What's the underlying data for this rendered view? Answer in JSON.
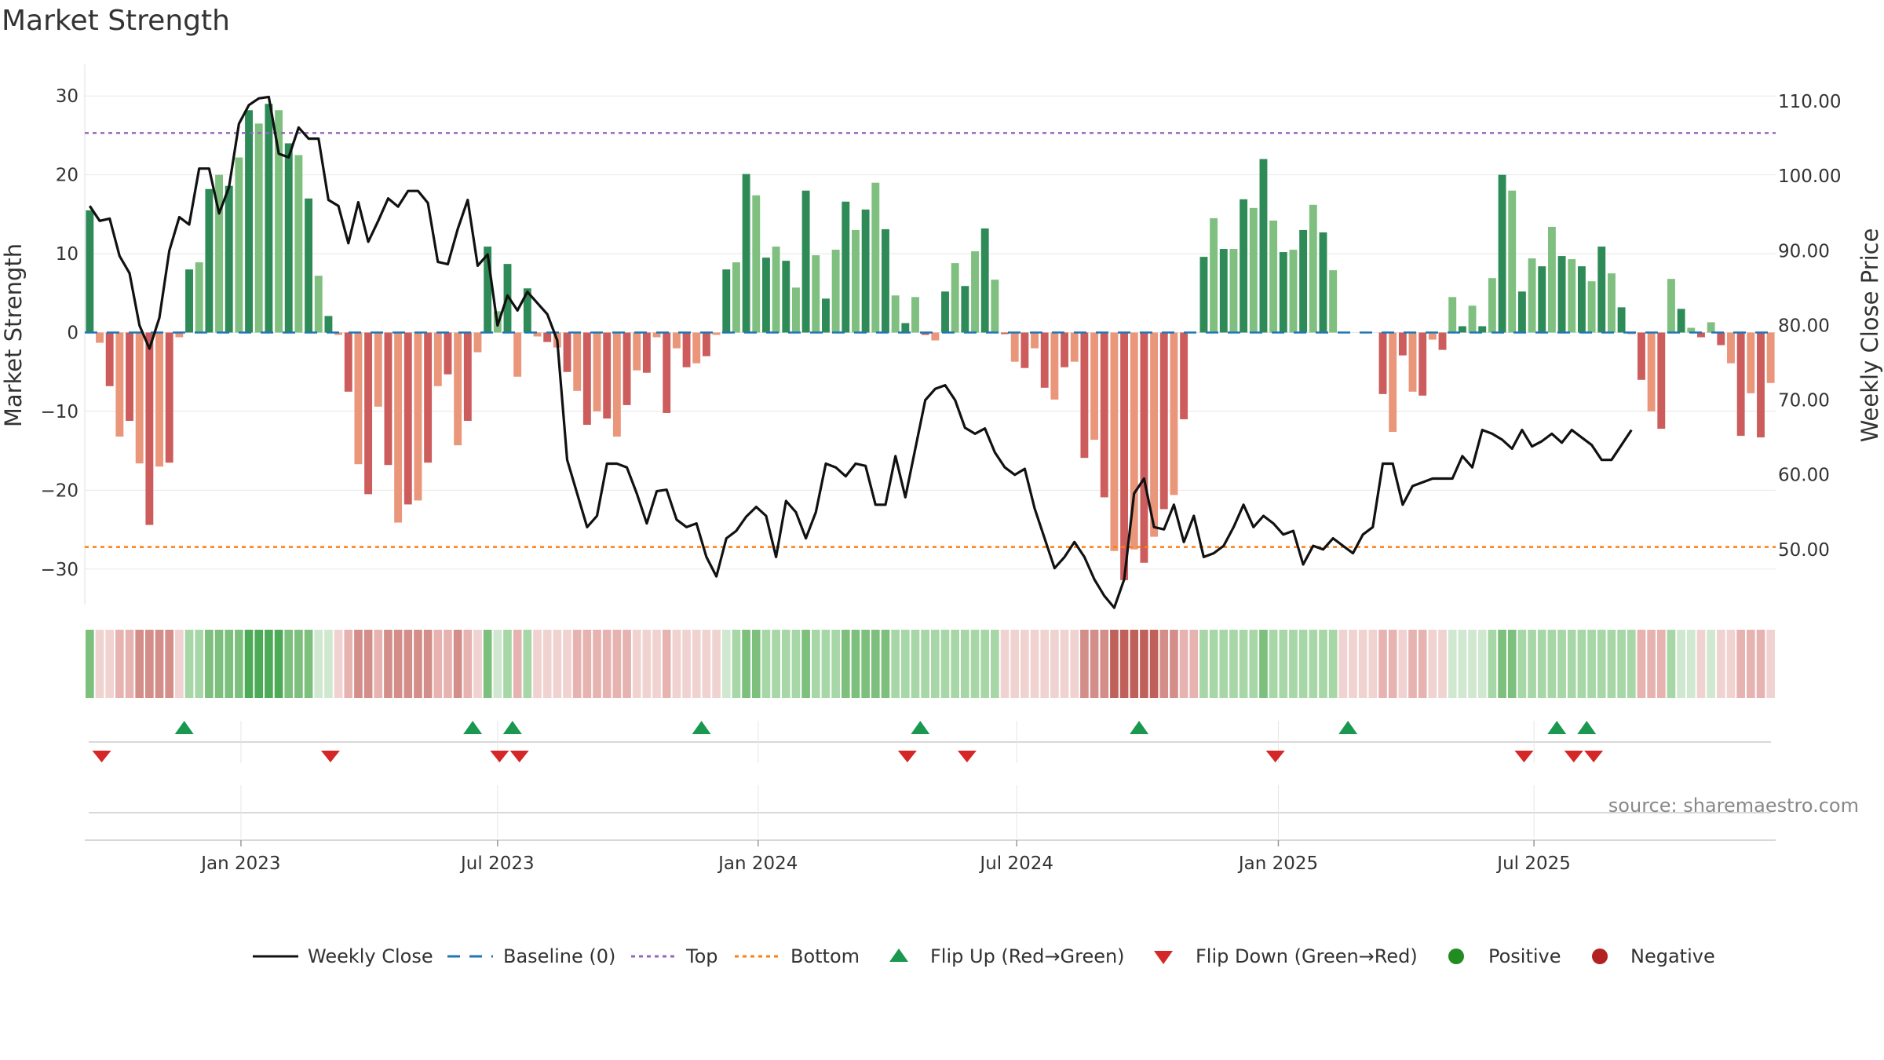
{
  "chart_data": {
    "type": "bar",
    "title": "Market Strength",
    "source": "source: sharemaestro.com",
    "left_axis": {
      "label": "Market Strength",
      "range": [
        -35,
        35
      ],
      "ticks": [
        "30",
        "20",
        "10",
        "0",
        "−10",
        "−20",
        "−30"
      ],
      "tick_values": [
        30,
        20,
        10,
        0,
        -10,
        -20,
        -30
      ]
    },
    "right_axis": {
      "label": "Weekly Close Price",
      "range": [
        42.1,
        116.0
      ],
      "ticks": [
        "110.00",
        "100.00",
        "90.00",
        "80.00",
        "70.00",
        "60.00",
        "50.00"
      ],
      "tick_values": [
        110,
        100,
        90,
        80,
        70,
        60,
        50
      ]
    },
    "x_axis": {
      "ticks": [
        "Jan 2023",
        "Jul 2023",
        "Jan 2024",
        "Jul 2024",
        "Jan 2025",
        "Jul 2025"
      ],
      "tick_week_index": [
        15.2,
        41.0,
        67.2,
        93.2,
        119.5,
        145.2
      ]
    },
    "reference_lines": {
      "baseline": 0,
      "top": 25.3,
      "bottom": -27.2
    },
    "series_strength": [
      15.5,
      -1.3,
      -6.8,
      -13.2,
      -11.2,
      -16.6,
      -24.4,
      -17.0,
      -16.5,
      -0.6,
      8.0,
      8.9,
      18.2,
      20.0,
      18.6,
      22.2,
      28.2,
      26.5,
      29.0,
      28.2,
      24.0,
      22.5,
      17.0,
      7.2,
      2.1,
      -0.3,
      -7.5,
      -16.7,
      -20.5,
      -9.4,
      -16.8,
      -24.1,
      -21.8,
      -21.3,
      -16.5,
      -6.8,
      -5.3,
      -14.3,
      -11.2,
      -2.5,
      10.9,
      2.7,
      8.7,
      -5.6,
      5.6,
      -0.5,
      -1.2,
      -1.9,
      -5.0,
      -7.4,
      -11.7,
      -10.0,
      -10.9,
      -13.2,
      -9.2,
      -4.8,
      -5.1,
      -0.6,
      -10.2,
      -2.0,
      -4.4,
      -3.9,
      -3.0,
      -0.3,
      8.0,
      8.9,
      20.1,
      17.4,
      9.5,
      10.9,
      9.1,
      5.7,
      18.0,
      9.8,
      4.3,
      10.5,
      16.6,
      13.0,
      15.6,
      19.0,
      13.1,
      4.7,
      1.2,
      4.5,
      -0.3,
      -1.0,
      5.2,
      8.8,
      5.9,
      10.3,
      13.2,
      6.7,
      -0.2,
      -3.7,
      -4.5,
      -2.0,
      -7.0,
      -8.5,
      -4.4,
      -3.7,
      -15.9,
      -13.6,
      -20.9,
      -27.7,
      -31.4,
      -27.5,
      -29.2,
      -25.9,
      -22.4,
      -20.6,
      -11.0,
      0,
      9.6,
      14.5,
      10.6,
      10.6,
      16.9,
      15.8,
      22.0,
      14.2,
      10.2,
      10.5,
      13.0,
      16.2,
      12.7,
      7.9,
      0,
      0,
      0,
      0,
      -7.8,
      -12.6,
      -2.9,
      -7.5,
      -8.0,
      -0.9,
      -2.2,
      4.5,
      0.8,
      3.4,
      0.8,
      6.9,
      20.0,
      18.0,
      5.2,
      9.4,
      8.4,
      13.4,
      9.7,
      9.3,
      8.4,
      6.5,
      10.9,
      7.5,
      3.2,
      -0.2,
      -6.0,
      -10.0,
      -12.2,
      6.8,
      3.0,
      0.6,
      -0.6,
      1.3,
      -1.6,
      -3.9,
      -13.1,
      -7.7,
      -13.3,
      -6.4
    ],
    "series_close": [
      96,
      94,
      94.3,
      89.3,
      87.0,
      80.0,
      76.9,
      81.0,
      90.0,
      94.5,
      93.5,
      101.0,
      101.0,
      95.0,
      98.5,
      107.0,
      109.5,
      110.4,
      110.6,
      103.0,
      102.5,
      106.5,
      105.0,
      105.0,
      96.8,
      96.0,
      91.0,
      96.5,
      91.2,
      94.0,
      97.0,
      95.9,
      98.0,
      98.0,
      96.4,
      88.5,
      88.2,
      92.9,
      96.8,
      88.0,
      89.5,
      80.0,
      84.0,
      82.0,
      84.5,
      83.0,
      81.5,
      78.0,
      62.0,
      57.5,
      53.0,
      54.5,
      61.5,
      61.5,
      61.0,
      57.5,
      53.5,
      57.8,
      58.0,
      54.0,
      53.0,
      53.5,
      49.0,
      46.4,
      51.5,
      52.5,
      54.4,
      55.7,
      54.5,
      49.0,
      56.5,
      55.0,
      51.5,
      55.0,
      61.5,
      61.0,
      59.8,
      61.5,
      61.2,
      56.0,
      56.0,
      62.5,
      57.0,
      63.5,
      70.0,
      71.5,
      72.0,
      70.0,
      66.3,
      65.5,
      66.2,
      63.0,
      61.0,
      60.0,
      60.8,
      55.5,
      51.5,
      47.5,
      49.0,
      51.0,
      49.0,
      46.0,
      43.8,
      42.2,
      46.0,
      57.5,
      59.5,
      53.0,
      52.7,
      56.0,
      51.0,
      54.5,
      49.0,
      49.5,
      50.5,
      53.0,
      56.0,
      53.0,
      54.5,
      53.5,
      52.0,
      52.5,
      48.0,
      50.5,
      50.0,
      51.5,
      50.5,
      49.5,
      52.0,
      53.0,
      61.5,
      61.5,
      56.0,
      58.5,
      59.0,
      59.5,
      59.5,
      59.5,
      62.5,
      61.0,
      66.0,
      65.5,
      64.7,
      63.5,
      66.0,
      63.8,
      64.5,
      65.5,
      64.3,
      66.0,
      65.0,
      64.0,
      62.0,
      62.0,
      64.0,
      66.0
    ],
    "heatmap_levels": [
      3,
      -1,
      -1,
      -2,
      -2,
      -3,
      -3,
      -3,
      -3,
      -1,
      2,
      2,
      3,
      3,
      3,
      3,
      4,
      4,
      4,
      4,
      3,
      3,
      3,
      1,
      1,
      -1,
      -2,
      -3,
      -3,
      -2,
      -3,
      -3,
      -3,
      -3,
      -3,
      -2,
      -2,
      -3,
      -2,
      -1,
      3,
      1,
      2,
      -2,
      2,
      -1,
      -1,
      -1,
      -1,
      -2,
      -2,
      -2,
      -2,
      -2,
      -2,
      -1,
      -1,
      -1,
      -2,
      -1,
      -1,
      -1,
      -1,
      -1,
      1,
      2,
      3,
      3,
      2,
      2,
      2,
      2,
      3,
      2,
      2,
      2,
      3,
      3,
      3,
      3,
      3,
      2,
      2,
      2,
      2,
      2,
      2,
      2,
      2,
      2,
      2,
      2,
      -1,
      -1,
      -1,
      -1,
      -1,
      -1,
      -1,
      -1,
      -3,
      -3,
      -3,
      -4,
      -4,
      -4,
      -4,
      -4,
      -3,
      -3,
      -2,
      -2,
      2,
      2,
      2,
      2,
      2,
      2,
      3,
      2,
      2,
      2,
      2,
      2,
      2,
      2,
      -1,
      -1,
      -1,
      -1,
      -2,
      -2,
      -1,
      -2,
      -2,
      -1,
      -1,
      1,
      1,
      1,
      1,
      2,
      3,
      3,
      2,
      2,
      2,
      2,
      2,
      2,
      2,
      2,
      2,
      2,
      2,
      2,
      -2,
      -2,
      -2,
      2,
      1,
      1,
      -1,
      1,
      -1,
      -1,
      -2,
      -2,
      -2,
      -1
    ],
    "flip_up_weeks": [
      9.5,
      38.5,
      42.5,
      61.5,
      83.5,
      105.5,
      126.5,
      147.5,
      150.5
    ],
    "flip_down_weeks": [
      1.2,
      24.2,
      41.2,
      43.2,
      82.2,
      88.2,
      119.2,
      144.2,
      149.2,
      151.2
    ],
    "colors": {
      "pos_strong": "#2e8b57",
      "pos_light": "#7fbf7f",
      "neg_strong": "#cd5c5c",
      "neg_light": "#e9967a",
      "line": "#111111",
      "baseline": "#1f77b4",
      "top": "#9467bd",
      "bottom": "#ff7f0e",
      "flip_up": "#1a9850",
      "flip_down": "#d62728",
      "positive": "#228b22",
      "negative": "#b22222"
    },
    "legend": [
      {
        "key": "close",
        "label": "Weekly Close"
      },
      {
        "key": "baseline",
        "label": "Baseline (0)"
      },
      {
        "key": "top",
        "label": "Top"
      },
      {
        "key": "bottom",
        "label": "Bottom"
      },
      {
        "key": "flip_up",
        "label": "Flip Up (Red→Green)"
      },
      {
        "key": "flip_down",
        "label": "Flip Down (Green→Red)"
      },
      {
        "key": "positive",
        "label": "Positive"
      },
      {
        "key": "negative",
        "label": "Negative"
      }
    ]
  }
}
